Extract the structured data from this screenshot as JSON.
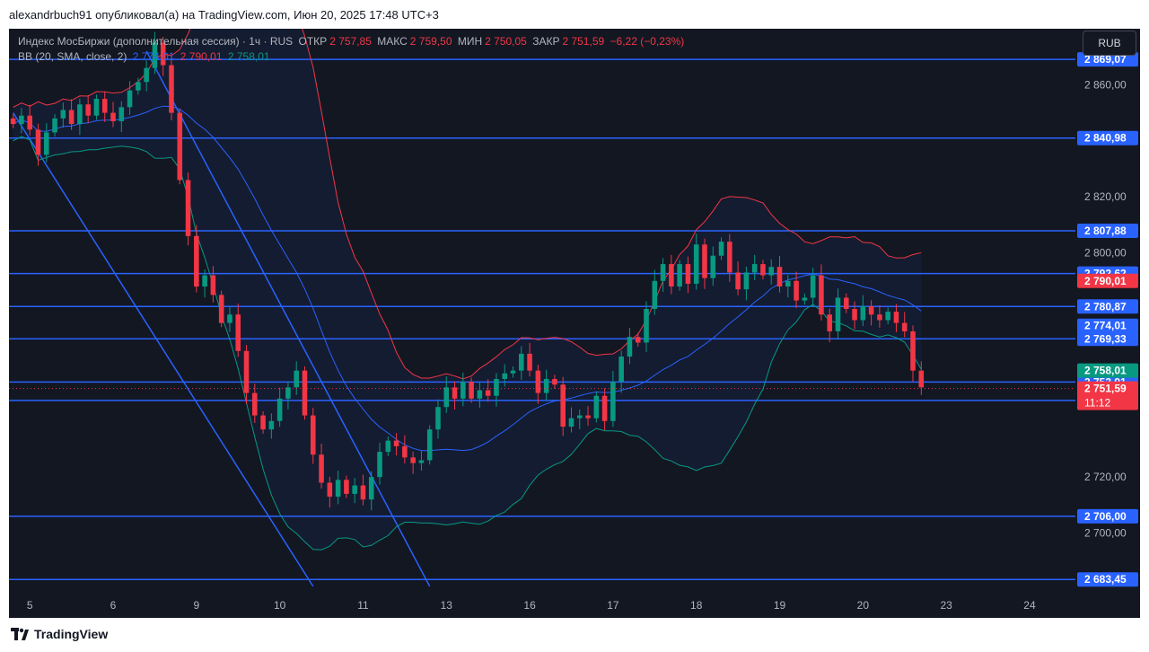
{
  "header": {
    "publisher_text": "alexandrbuch91 опубликовал(а) на TradingView.com, Июн 20, 2025 17:48 UTC+3"
  },
  "legend": {
    "symbol_line": "Индекс МосБиржи (дополнительная сессия) · 1ч · RUS",
    "open_label": "ОТКР",
    "open_value": "2 757,85",
    "high_label": "МАКС",
    "high_value": "2 759,50",
    "low_label": "МИН",
    "low_value": "2 750,05",
    "close_label": "ЗАКР",
    "close_value": "2 751,59",
    "change_value": "−6,22 (−0,23%)",
    "indicator_label": "BB (20, SMA, close, 2)",
    "bb_basis": "2 774,01",
    "bb_upper": "2 790,01",
    "bb_lower": "2 758,01"
  },
  "currency_button": "RUB",
  "branding": {
    "logo_text": "TradingView"
  },
  "colors": {
    "background": "#131722",
    "up": "#089981",
    "down": "#f23645",
    "level_line": "#2962ff",
    "bb_basis": "#2962ff",
    "bb_upper": "#f23645",
    "bb_lower": "#089981",
    "text": "#b2b5be"
  },
  "chart_data": {
    "type": "candlestick",
    "ylim": [
      2680,
      2880
    ],
    "y_ticks": [
      {
        "value": 2700,
        "label": "2 700,00"
      },
      {
        "value": 2720,
        "label": "2 720,00"
      },
      {
        "value": 2800,
        "label": "2 800,00"
      },
      {
        "value": 2820,
        "label": "2 820,00"
      },
      {
        "value": 2860,
        "label": "2 860,00"
      }
    ],
    "x_ticks": [
      {
        "bar": 2,
        "label": "5"
      },
      {
        "bar": 12,
        "label": "6"
      },
      {
        "bar": 22,
        "label": "9"
      },
      {
        "bar": 32,
        "label": "10"
      },
      {
        "bar": 42,
        "label": "11"
      },
      {
        "bar": 52,
        "label": "13"
      },
      {
        "bar": 62,
        "label": "16"
      },
      {
        "bar": 72,
        "label": "17"
      },
      {
        "bar": 82,
        "label": "18"
      },
      {
        "bar": 92,
        "label": "19"
      },
      {
        "bar": 102,
        "label": "20"
      },
      {
        "bar": 112,
        "label": "23"
      },
      {
        "bar": 122,
        "label": "24"
      }
    ],
    "levels": [
      {
        "value": 2869.07,
        "label": "2 869,07"
      },
      {
        "value": 2840.98,
        "label": "2 840,98"
      },
      {
        "value": 2807.88,
        "label": "2 807,88"
      },
      {
        "value": 2792.62,
        "label": "2 792,62"
      },
      {
        "value": 2780.87,
        "label": "2 780,87"
      },
      {
        "value": 2769.33,
        "label": "2 769,33"
      },
      {
        "value": 2753.91,
        "label": "2 753,91"
      },
      {
        "value": 2747.35,
        "label": "2 747,35"
      },
      {
        "value": 2706.0,
        "label": "2 706,00"
      },
      {
        "value": 2683.45,
        "label": "2 683,45"
      }
    ],
    "price_labels": [
      {
        "value": 2790.01,
        "label": "2 790,01",
        "color": "#f23645"
      },
      {
        "value": 2774.01,
        "label": "2 774,01",
        "color": "#2962ff"
      },
      {
        "value": 2758.01,
        "label": "2 758,01",
        "color": "#089981"
      },
      {
        "value": 2751.59,
        "label": "2 751,59",
        "sublabel": "11:12",
        "color": "#f23645"
      }
    ],
    "trend_lines": [
      {
        "from": [
          0,
          2850
        ],
        "to": [
          36,
          2681
        ]
      },
      {
        "from": [
          16,
          2872
        ],
        "to": [
          50,
          2681
        ]
      }
    ],
    "close": [
      2846,
      2849,
      2844,
      2835,
      2843,
      2848,
      2851,
      2846,
      2853,
      2849,
      2855,
      2850,
      2847,
      2852,
      2858,
      2861,
      2866,
      2875,
      2867,
      2850,
      2826,
      2806,
      2788,
      2792,
      2785,
      2775,
      2778,
      2765,
      2750,
      2742,
      2737,
      2740,
      2748,
      2752,
      2758,
      2742,
      2728,
      2718,
      2713,
      2719,
      2714,
      2717,
      2712,
      2720,
      2729,
      2733,
      2731,
      2727,
      2725,
      2726,
      2737,
      2745,
      2752,
      2748,
      2754,
      2748,
      2751,
      2749,
      2755,
      2757,
      2758,
      2764,
      2758,
      2750,
      2755,
      2753,
      2738,
      2741,
      2742,
      2741,
      2749,
      2740,
      2754,
      2763,
      2770,
      2768,
      2780,
      2790,
      2796,
      2788,
      2796,
      2789,
      2803,
      2791,
      2799,
      2804,
      2793,
      2787,
      2793,
      2796,
      2792,
      2795,
      2788,
      2790,
      2783,
      2784,
      2792,
      2778,
      2772,
      2784,
      2780,
      2776,
      2781,
      2778,
      2776,
      2779,
      2775,
      2772,
      2758,
      2752
    ]
  }
}
